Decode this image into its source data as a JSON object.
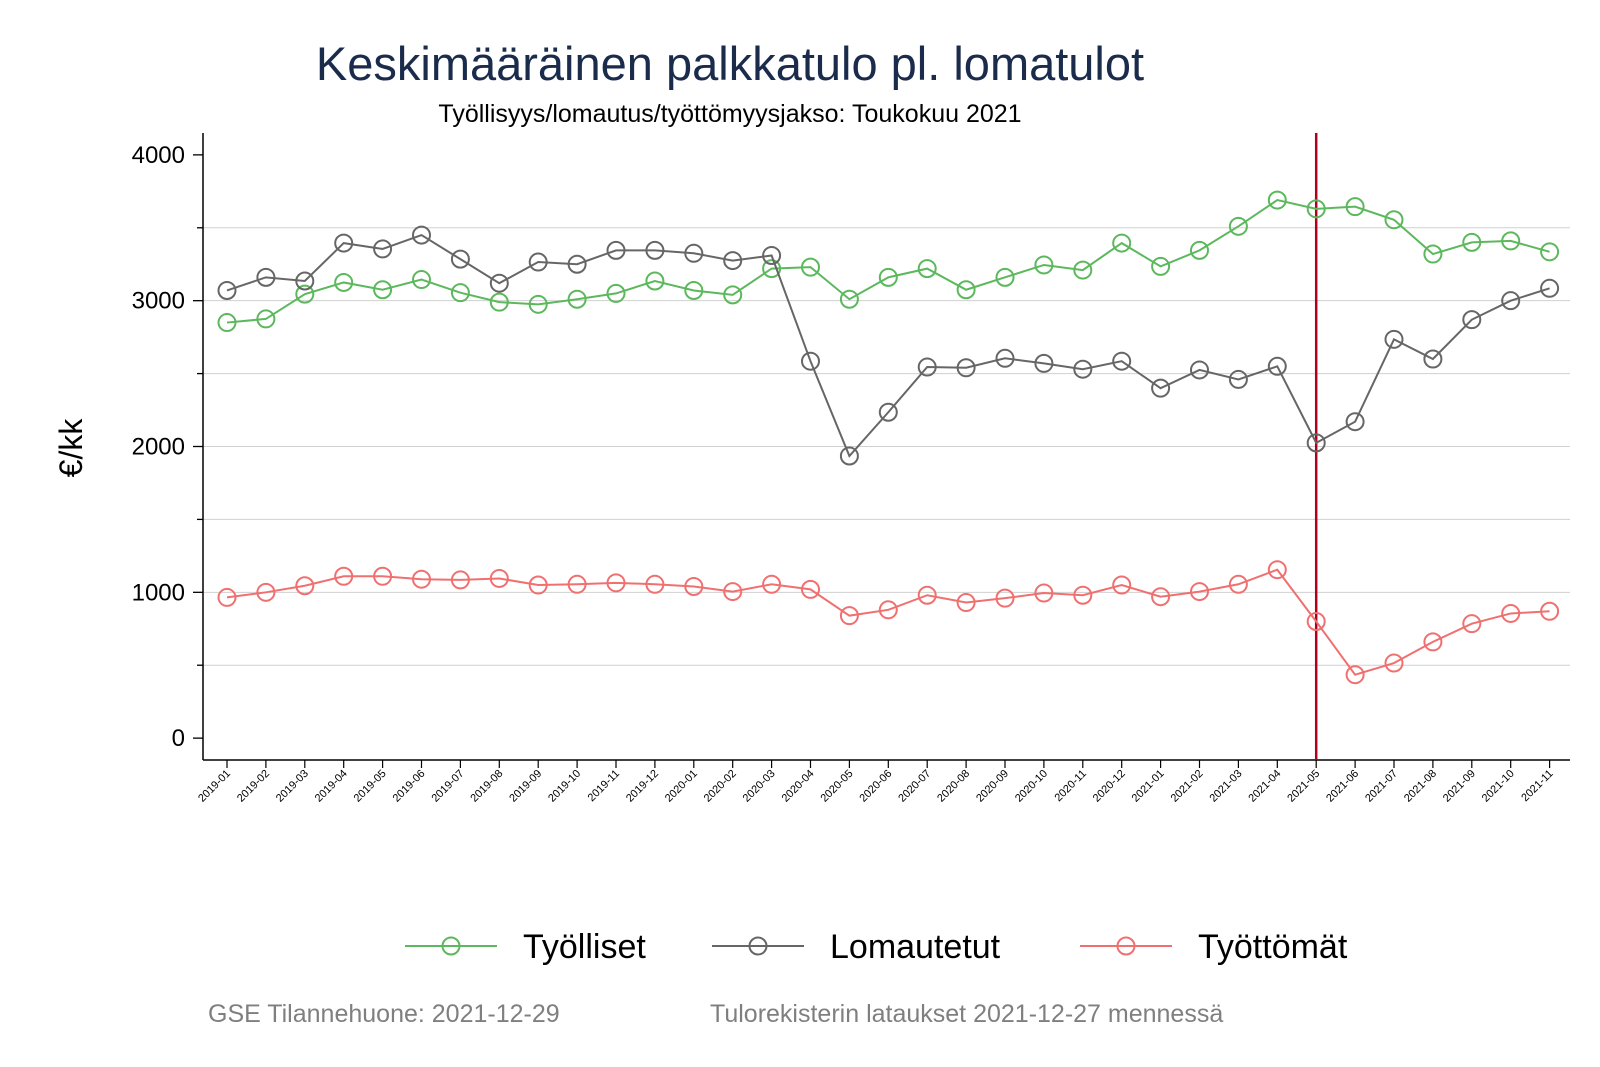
{
  "chart_data": {
    "type": "line",
    "title": "Keskimääräinen palkkatulo pl. lomatulot",
    "subtitle": "Työllisyys/lomautus/työttömyysjakso: Toukokuu 2021",
    "xlabel": "",
    "ylabel": "€/kk",
    "ylim": [
      -150,
      4150
    ],
    "yticks": [
      0,
      1000,
      2000,
      3000,
      4000
    ],
    "grid": true,
    "legend_position": "bottom",
    "vline": {
      "x": "2021-05",
      "color": "#b00020"
    },
    "categories": [
      "2019-01",
      "2019-02",
      "2019-03",
      "2019-04",
      "2019-05",
      "2019-06",
      "2019-07",
      "2019-08",
      "2019-09",
      "2019-10",
      "2019-11",
      "2019-12",
      "2020-01",
      "2020-02",
      "2020-03",
      "2020-04",
      "2020-05",
      "2020-06",
      "2020-07",
      "2020-08",
      "2020-09",
      "2020-10",
      "2020-11",
      "2020-12",
      "2021-01",
      "2021-02",
      "2021-03",
      "2021-04",
      "2021-05",
      "2021-06",
      "2021-07",
      "2021-08",
      "2021-09",
      "2021-10",
      "2021-11"
    ],
    "series": [
      {
        "name": "Työlliset",
        "color": "#5cb85c",
        "values": [
          2850,
          2875,
          3045,
          3125,
          3075,
          3145,
          3055,
          2990,
          2975,
          3010,
          3050,
          3135,
          3070,
          3040,
          3220,
          3230,
          3010,
          3160,
          3220,
          3075,
          3160,
          3245,
          3210,
          3395,
          3235,
          3345,
          3510,
          3690,
          3630,
          3645,
          3555,
          3320,
          3400,
          3410,
          3335
        ]
      },
      {
        "name": "Lomautetut",
        "color": "#666666",
        "values": [
          3070,
          3160,
          3135,
          3395,
          3355,
          3450,
          3285,
          3120,
          3265,
          3250,
          3345,
          3345,
          3325,
          3275,
          3310,
          2585,
          1935,
          2235,
          2545,
          2540,
          2605,
          2570,
          2530,
          2585,
          2400,
          2525,
          2460,
          2550,
          2025,
          2170,
          2735,
          2600,
          2870,
          3000,
          3085
        ]
      },
      {
        "name": "Työttömät",
        "color": "#f07070",
        "values": [
          965,
          1000,
          1045,
          1110,
          1110,
          1090,
          1085,
          1095,
          1050,
          1055,
          1065,
          1055,
          1040,
          1005,
          1055,
          1020,
          840,
          880,
          980,
          930,
          960,
          995,
          980,
          1050,
          970,
          1005,
          1055,
          1155,
          800,
          435,
          515,
          660,
          785,
          855,
          870
        ]
      }
    ]
  },
  "footer": {
    "left": "GSE Tilannehuone: 2021-12-29",
    "right": "Tulorekisterin lataukset 2021-12-27 mennessä"
  }
}
